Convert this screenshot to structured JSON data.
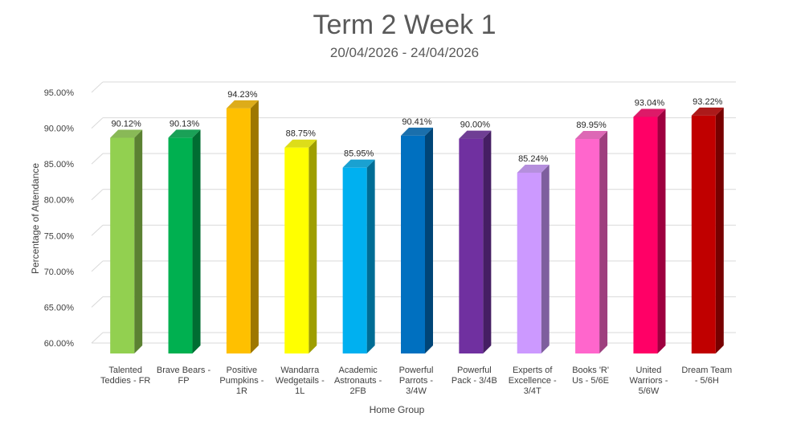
{
  "chart_data": {
    "type": "bar",
    "title": "Term 2 Week 1",
    "subtitle": "20/04/2026 - 24/04/2026",
    "xlabel": "Home Group",
    "ylabel": "Percentage of Attendance",
    "ylim": [
      60,
      95
    ],
    "yticks": [
      "60.00%",
      "65.00%",
      "70.00%",
      "75.00%",
      "80.00%",
      "85.00%",
      "90.00%",
      "95.00%"
    ],
    "grid": true,
    "legend": "none",
    "categories": [
      [
        "Talented",
        "Teddies - FR"
      ],
      [
        "Brave Bears -",
        "FP"
      ],
      [
        "Positive",
        "Pumpkins -",
        "1R"
      ],
      [
        "Wandarra",
        "Wedgetails -",
        "1L"
      ],
      [
        "Academic",
        "Astronauts -",
        "2FB"
      ],
      [
        "Powerful",
        "Parrots -",
        "3/4W"
      ],
      [
        "Powerful",
        "Pack - 3/4B"
      ],
      [
        "Experts of",
        "Excellence -",
        "3/4T"
      ],
      [
        "Books 'R'",
        "Us - 5/6E"
      ],
      [
        "United",
        "Warriors -",
        "5/6W"
      ],
      [
        "Dream Team",
        "- 5/6H"
      ]
    ],
    "values": [
      90.12,
      90.13,
      94.23,
      88.75,
      85.95,
      90.41,
      90.0,
      85.24,
      89.95,
      93.04,
      93.22
    ],
    "data_labels": [
      "90.12%",
      "90.13%",
      "94.23%",
      "88.75%",
      "85.95%",
      "90.41%",
      "90.00%",
      "85.24%",
      "89.95%",
      "93.04%",
      "93.22%"
    ],
    "colors": [
      "#92D050",
      "#00B050",
      "#FFC000",
      "#FFFF00",
      "#00B0F0",
      "#0070C0",
      "#7030A0",
      "#CC99FF",
      "#FF66CC",
      "#FF0066",
      "#C00000"
    ]
  }
}
